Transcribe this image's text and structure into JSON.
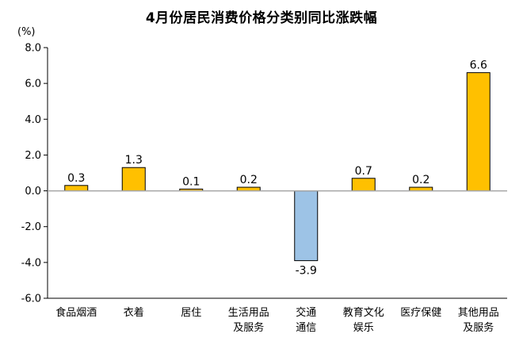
{
  "chart_data": {
    "type": "bar",
    "title": "4月份居民消费价格分类别同比涨跌幅",
    "ylabel": "(%)",
    "ylim": [
      -6,
      8
    ],
    "yticks": [
      "8.0",
      "6.0",
      "4.0",
      "2.0",
      "0.0",
      "-2.0",
      "-4.0",
      "-6.0"
    ],
    "grid": false,
    "categories": [
      [
        "食品烟酒"
      ],
      [
        "衣着"
      ],
      [
        "居住"
      ],
      [
        "生活用品",
        "及服务"
      ],
      [
        "交通",
        "通信"
      ],
      [
        "教育文化",
        "娱乐"
      ],
      [
        "医疗保健"
      ],
      [
        "其他用品",
        "及服务"
      ]
    ],
    "values": [
      0.3,
      1.3,
      0.1,
      0.2,
      -3.9,
      0.7,
      0.2,
      6.6
    ],
    "value_labels": [
      "0.3",
      "1.3",
      "0.1",
      "0.2",
      "-3.9",
      "0.7",
      "0.2",
      "6.6"
    ],
    "colors": {
      "positive_fill": "#ffc000",
      "positive_stroke": "#000000",
      "negative_fill": "#9dc3e6",
      "negative_stroke": "#000000",
      "axis": "#000000",
      "zero_line": "#a6a6a6"
    }
  }
}
